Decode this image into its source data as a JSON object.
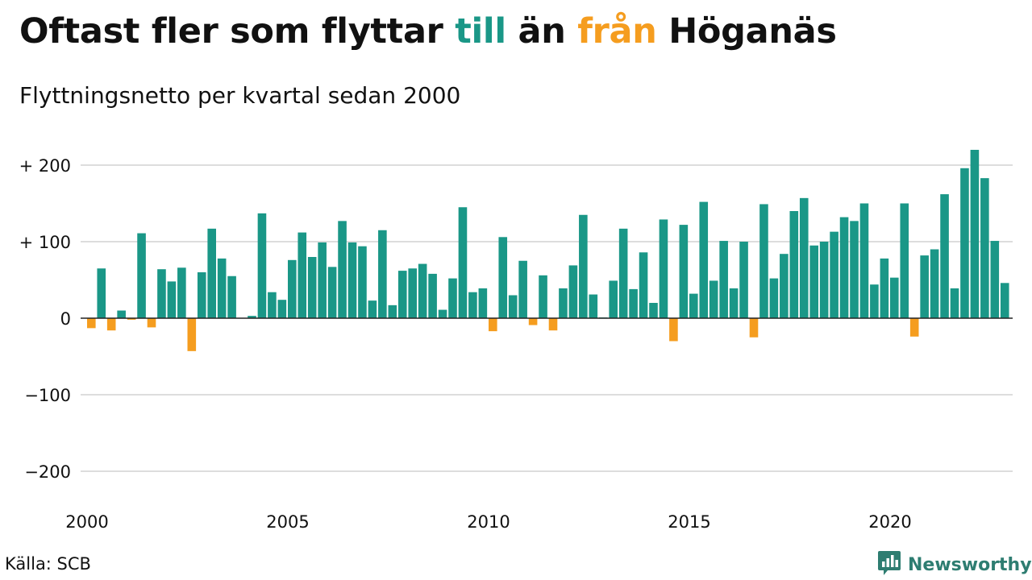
{
  "title": {
    "part1": "Oftast fler som flyttar ",
    "word_to": "till",
    "part2": " än ",
    "word_from": "från",
    "part3": " Höganäs"
  },
  "subtitle": "Flyttningsnetto per kvartal sedan 2000",
  "source": "Källa: SCB",
  "brand": {
    "name": "Newsworthy",
    "icon": "bar-chart-speech-bubble-icon"
  },
  "colors": {
    "positive": "#1a9787",
    "negative": "#f59d1f",
    "grid": "#dddddd",
    "baseline": "#222222",
    "text": "#111111",
    "brand": "#2e7d71"
  },
  "chart_data": {
    "type": "bar",
    "title": "Oftast fler som flyttar till än från Höganäs",
    "subtitle": "Flyttningsnetto per kvartal sedan 2000",
    "xlabel": "",
    "ylabel": "",
    "ylim": [
      -200,
      200
    ],
    "yticks": [
      200,
      100,
      0,
      -100,
      -200
    ],
    "ytick_labels": [
      "+ 200",
      "+ 100",
      "0",
      "−100",
      "−200"
    ],
    "xtick_labels": [
      "2000",
      "2005",
      "2010",
      "2015",
      "2020"
    ],
    "grid": true,
    "start": "2000 Q1",
    "values": [
      -13,
      65,
      -16,
      10,
      -2,
      111,
      -12,
      64,
      48,
      66,
      -43,
      60,
      117,
      78,
      55,
      0,
      3,
      137,
      34,
      24,
      76,
      112,
      80,
      99,
      67,
      127,
      99,
      94,
      23,
      115,
      17,
      62,
      65,
      71,
      58,
      11,
      52,
      145,
      34,
      39,
      -17,
      106,
      30,
      75,
      -9,
      56,
      -16,
      39,
      69,
      135,
      31,
      1,
      49,
      117,
      38,
      86,
      20,
      129,
      -30,
      122,
      32,
      152,
      49,
      101,
      39,
      100,
      -25,
      149,
      52,
      84,
      140,
      157,
      95,
      100,
      113,
      132,
      127,
      150,
      44,
      78,
      53,
      150,
      -24,
      82,
      90,
      162,
      39,
      196,
      220,
      183,
      101,
      46
    ]
  }
}
